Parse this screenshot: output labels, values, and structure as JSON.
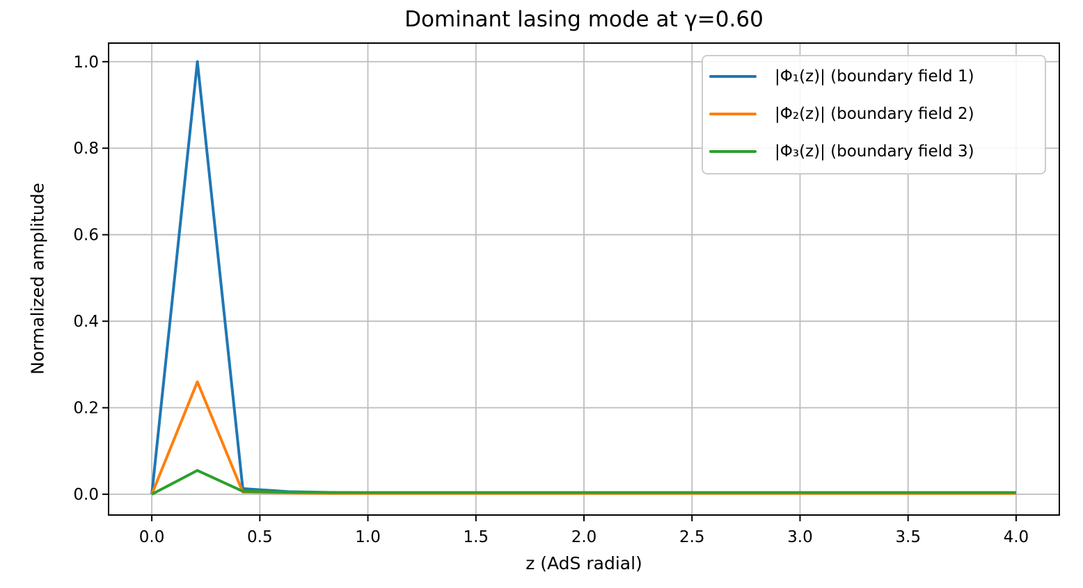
{
  "chart_data": {
    "type": "line",
    "title": "Dominant lasing mode at γ=0.60",
    "xlabel": "z (AdS radial)",
    "ylabel": "Normalized amplitude",
    "xlim": [
      -0.2,
      4.2
    ],
    "ylim": [
      -0.048,
      1.043
    ],
    "grid": true,
    "legend_position": "upper right",
    "x_ticks": [
      0.0,
      0.5,
      1.0,
      1.5,
      2.0,
      2.5,
      3.0,
      3.5,
      4.0
    ],
    "x_tick_labels": [
      "0.0",
      "0.5",
      "1.0",
      "1.5",
      "2.0",
      "2.5",
      "3.0",
      "3.5",
      "4.0"
    ],
    "y_ticks": [
      0.0,
      0.2,
      0.4,
      0.6,
      0.8,
      1.0
    ],
    "y_tick_labels": [
      "0.0",
      "0.2",
      "0.4",
      "0.6",
      "0.8",
      "1.0"
    ],
    "x": [
      0.0,
      0.211,
      0.421,
      0.632,
      0.842,
      1.053,
      1.263,
      1.474,
      1.684,
      1.895,
      2.105,
      2.316,
      2.526,
      2.737,
      2.947,
      3.158,
      3.368,
      3.579,
      3.789,
      4.0
    ],
    "series": [
      {
        "name": "|Φ₁(z)| (boundary field 1)",
        "color": "#1f77b4",
        "values": [
          0.0,
          1.0,
          0.013,
          0.006,
          0.004,
          0.003,
          0.003,
          0.003,
          0.003,
          0.003,
          0.003,
          0.003,
          0.003,
          0.003,
          0.003,
          0.003,
          0.003,
          0.003,
          0.003,
          0.003
        ]
      },
      {
        "name": "|Φ₂(z)| (boundary field 2)",
        "color": "#ff7f0e",
        "values": [
          0.0,
          0.26,
          0.005,
          0.003,
          0.002,
          0.002,
          0.002,
          0.002,
          0.002,
          0.002,
          0.002,
          0.002,
          0.002,
          0.002,
          0.002,
          0.002,
          0.002,
          0.002,
          0.002,
          0.002
        ]
      },
      {
        "name": "|Φ₃(z)| (boundary field 3)",
        "color": "#2ca02c",
        "values": [
          0.0,
          0.055,
          0.007,
          0.005,
          0.004,
          0.004,
          0.004,
          0.004,
          0.004,
          0.004,
          0.004,
          0.004,
          0.004,
          0.004,
          0.004,
          0.004,
          0.004,
          0.004,
          0.004,
          0.004
        ]
      }
    ],
    "style": {
      "grid_color": "#bdbdbd",
      "frame_color": "#000000",
      "text_color": "#000000",
      "legend_border_color": "#cccccc"
    }
  }
}
